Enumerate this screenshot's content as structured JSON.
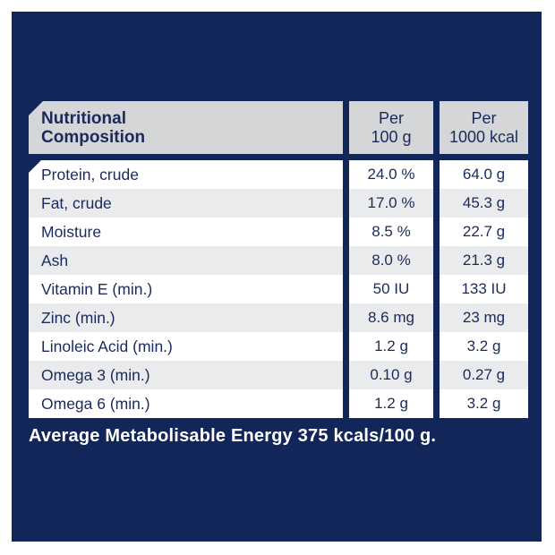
{
  "colors": {
    "panel_navy": "#12265A",
    "header_gray": "#D4D6D8",
    "row_stripe": "#E9EBED",
    "text_navy": "#1B2A5B",
    "footer_text": "#FFFFFF"
  },
  "table": {
    "title": "Nutritional\nComposition",
    "columns": [
      {
        "label": "Per\n100 g"
      },
      {
        "label": "Per\n1000 kcal"
      }
    ],
    "rows": [
      {
        "label": "Protein, crude",
        "per_100g": "24.0 %",
        "per_1000kcal": "64.0 g"
      },
      {
        "label": "Fat, crude",
        "per_100g": "17.0 %",
        "per_1000kcal": "45.3 g"
      },
      {
        "label": "Moisture",
        "per_100g": "8.5 %",
        "per_1000kcal": "22.7 g"
      },
      {
        "label": "Ash",
        "per_100g": "8.0 %",
        "per_1000kcal": "21.3 g"
      },
      {
        "label": "Vitamin E (min.)",
        "per_100g": "50 IU",
        "per_1000kcal": "133 IU"
      },
      {
        "label": "Zinc (min.)",
        "per_100g": "8.6 mg",
        "per_1000kcal": "23 mg"
      },
      {
        "label": "Linoleic Acid (min.)",
        "per_100g": "1.2 g",
        "per_1000kcal": "3.2 g"
      },
      {
        "label": "Omega 3 (min.)",
        "per_100g": "0.10 g",
        "per_1000kcal": "0.27 g"
      },
      {
        "label": "Omega 6 (min.)",
        "per_100g": "1.2 g",
        "per_1000kcal": "3.2 g"
      }
    ],
    "footnote": "Average Metabolisable Energy 375 kcals/100 g."
  }
}
